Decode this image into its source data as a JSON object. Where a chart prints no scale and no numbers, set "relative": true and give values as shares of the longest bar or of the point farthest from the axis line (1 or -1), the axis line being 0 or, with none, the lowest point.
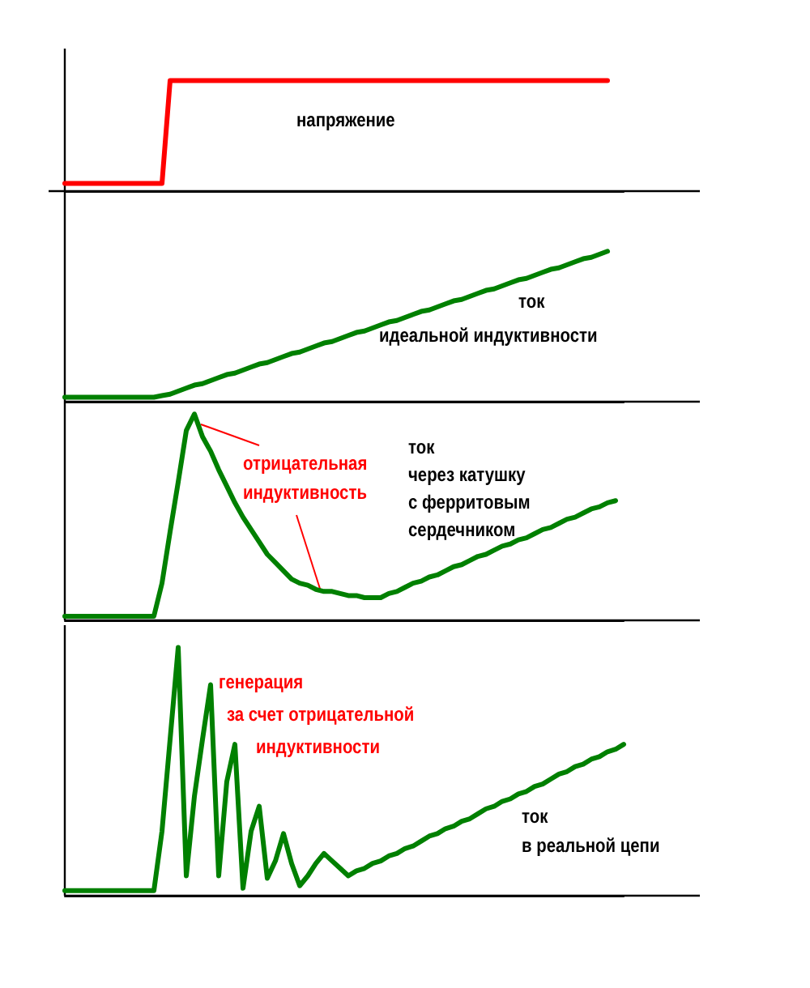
{
  "chart_data": [
    {
      "type": "line",
      "relative": true,
      "tick_labels": false,
      "categories": [
        null,
        null,
        null,
        null,
        null,
        null,
        null,
        null,
        null,
        null,
        null,
        null,
        null,
        null,
        null,
        null,
        null,
        null,
        null,
        null,
        null,
        null,
        null,
        null,
        null,
        null,
        null,
        null,
        null,
        null,
        null,
        null,
        null,
        null,
        null,
        null,
        null,
        null,
        null,
        null,
        null,
        null,
        null,
        null,
        null,
        null,
        null,
        null,
        null,
        null,
        null,
        null,
        null,
        null,
        null,
        null,
        null,
        null,
        null,
        null,
        null,
        null,
        null,
        null,
        null,
        null,
        null,
        null,
        null,
        null
      ],
      "series": [
        {
          "color": "#ff0000",
          "values": [
            0.07,
            0.07,
            0.07,
            0.07,
            0.07,
            0.07,
            0.07,
            0.07,
            0.07,
            0.07,
            0.07,
            0.07,
            0.07,
            1,
            1,
            1,
            1,
            1,
            1,
            1,
            1,
            1,
            1,
            1,
            1,
            1,
            1,
            1,
            1,
            1,
            1,
            1,
            1,
            1,
            1,
            1,
            1,
            1,
            1,
            1,
            1,
            1,
            1,
            1,
            1,
            1,
            1,
            1,
            1,
            1,
            1,
            1,
            1,
            1,
            1,
            1,
            1,
            1,
            1,
            1,
            1,
            1,
            1,
            1,
            1,
            1,
            1,
            1,
            null,
            null
          ]
        }
      ],
      "annotations": [
        "напряжение"
      ]
    },
    {
      "type": "line",
      "relative": true,
      "tick_labels": false,
      "categories": [
        null,
        null,
        null,
        null,
        null,
        null,
        null,
        null,
        null,
        null,
        null,
        null,
        null,
        null,
        null,
        null,
        null,
        null,
        null,
        null,
        null,
        null,
        null,
        null,
        null,
        null,
        null,
        null,
        null,
        null,
        null,
        null,
        null,
        null,
        null,
        null,
        null,
        null,
        null,
        null,
        null,
        null,
        null,
        null,
        null,
        null,
        null,
        null,
        null,
        null,
        null,
        null,
        null,
        null,
        null,
        null,
        null,
        null,
        null,
        null,
        null,
        null,
        null,
        null,
        null,
        null,
        null,
        null,
        null,
        null
      ],
      "series": [
        {
          "color": "#008000",
          "values": [
            0.03,
            0.03,
            0.03,
            0.03,
            0.03,
            0.03,
            0.03,
            0.03,
            0.03,
            0.03,
            0.03,
            0.03,
            0.04,
            0.05,
            0.07,
            0.09,
            0.11,
            0.12,
            0.14,
            0.16,
            0.18,
            0.19,
            0.21,
            0.23,
            0.25,
            0.26,
            0.28,
            0.3,
            0.32,
            0.33,
            0.35,
            0.37,
            0.39,
            0.4,
            0.42,
            0.44,
            0.46,
            0.47,
            0.49,
            0.51,
            0.53,
            0.54,
            0.56,
            0.58,
            0.6,
            0.61,
            0.63,
            0.65,
            0.67,
            0.68,
            0.7,
            0.72,
            0.74,
            0.75,
            0.77,
            0.79,
            0.81,
            0.82,
            0.84,
            0.86,
            0.88,
            0.89,
            0.91,
            0.93,
            0.95,
            0.96,
            0.98,
            1.0,
            null,
            null
          ]
        }
      ],
      "annotations": [
        "ток",
        "идеальной индуктивности"
      ]
    },
    {
      "type": "line",
      "relative": true,
      "tick_labels": false,
      "categories": [
        null,
        null,
        null,
        null,
        null,
        null,
        null,
        null,
        null,
        null,
        null,
        null,
        null,
        null,
        null,
        null,
        null,
        null,
        null,
        null,
        null,
        null,
        null,
        null,
        null,
        null,
        null,
        null,
        null,
        null,
        null,
        null,
        null,
        null,
        null,
        null,
        null,
        null,
        null,
        null,
        null,
        null,
        null,
        null,
        null,
        null,
        null,
        null,
        null,
        null,
        null,
        null,
        null,
        null,
        null,
        null,
        null,
        null,
        null,
        null,
        null,
        null,
        null,
        null,
        null,
        null,
        null,
        null,
        null,
        null
      ],
      "series": [
        {
          "color": "#008000",
          "values": [
            0.02,
            0.02,
            0.02,
            0.02,
            0.02,
            0.02,
            0.02,
            0.02,
            0.02,
            0.02,
            0.02,
            0.02,
            0.18,
            0.43,
            0.67,
            0.92,
            1.0,
            0.89,
            0.82,
            0.73,
            0.65,
            0.57,
            0.5,
            0.44,
            0.38,
            0.32,
            0.28,
            0.24,
            0.2,
            0.18,
            0.17,
            0.15,
            0.14,
            0.14,
            0.13,
            0.12,
            0.12,
            0.11,
            0.11,
            0.11,
            0.13,
            0.14,
            0.16,
            0.18,
            0.19,
            0.21,
            0.22,
            0.24,
            0.26,
            0.27,
            0.29,
            0.31,
            0.32,
            0.34,
            0.36,
            0.37,
            0.39,
            0.4,
            0.42,
            0.44,
            0.45,
            0.47,
            0.49,
            0.5,
            0.52,
            0.54,
            0.55,
            0.57,
            0.58,
            null
          ]
        }
      ],
      "annotations": [
        "отрицательная",
        "индуктивность",
        "ток",
        "через катушку",
        "с ферритовым",
        "сердечником"
      ]
    },
    {
      "type": "line",
      "relative": true,
      "tick_labels": false,
      "categories": [
        null,
        null,
        null,
        null,
        null,
        null,
        null,
        null,
        null,
        null,
        null,
        null,
        null,
        null,
        null,
        null,
        null,
        null,
        null,
        null,
        null,
        null,
        null,
        null,
        null,
        null,
        null,
        null,
        null,
        null,
        null,
        null,
        null,
        null,
        null,
        null,
        null,
        null,
        null,
        null,
        null,
        null,
        null,
        null,
        null,
        null,
        null,
        null,
        null,
        null,
        null,
        null,
        null,
        null,
        null,
        null,
        null,
        null,
        null,
        null,
        null,
        null,
        null,
        null,
        null,
        null,
        null,
        null,
        null,
        null
      ],
      "series": [
        {
          "color": "#008000",
          "values": [
            0.02,
            0.02,
            0.02,
            0.02,
            0.02,
            0.02,
            0.02,
            0.02,
            0.02,
            0.02,
            0.02,
            0.02,
            0.26,
            0.63,
            1,
            0.08,
            0.4,
            0.63,
            0.85,
            0.08,
            0.46,
            0.61,
            0.03,
            0.26,
            0.36,
            0.07,
            0.14,
            0.25,
            0.13,
            0.04,
            0.08,
            0.13,
            0.17,
            0.14,
            0.11,
            0.08,
            0.1,
            0.11,
            0.13,
            0.14,
            0.16,
            0.17,
            0.19,
            0.2,
            0.22,
            0.24,
            0.25,
            0.27,
            0.28,
            0.3,
            0.31,
            0.33,
            0.35,
            0.36,
            0.38,
            0.39,
            0.41,
            0.42,
            0.44,
            0.45,
            0.47,
            0.49,
            0.5,
            0.52,
            0.53,
            0.55,
            0.56,
            0.58,
            0.59,
            0.61
          ]
        }
      ],
      "annotations": [
        "генерация",
        "за счет отрицательной",
        "индуктивности",
        "ток",
        "в реальной цепи"
      ]
    }
  ]
}
